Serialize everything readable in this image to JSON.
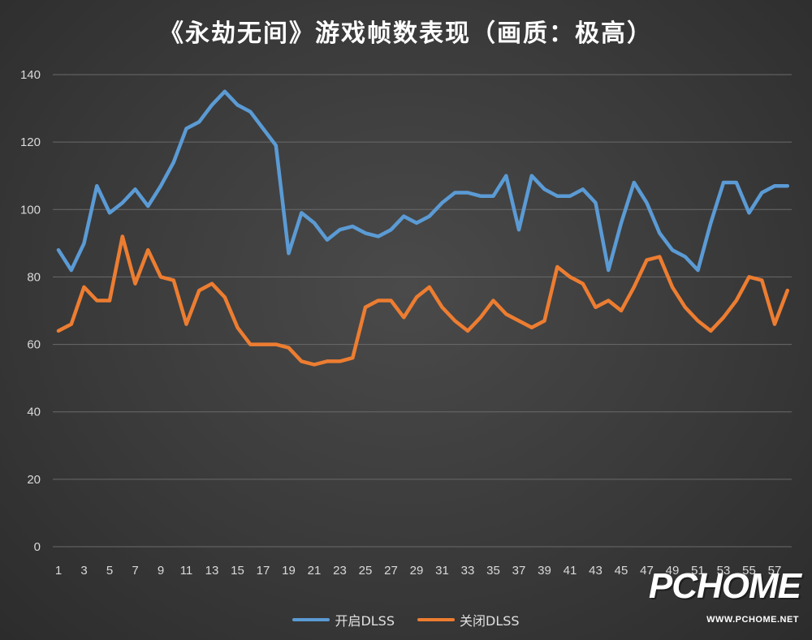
{
  "chart_data": {
    "type": "line",
    "title": "《永劫无间》游戏帧数表现（画质：极高）",
    "ylim": [
      0,
      140
    ],
    "yticks": [
      0,
      20,
      40,
      60,
      80,
      100,
      120,
      140
    ],
    "xticks": [
      "1",
      "3",
      "5",
      "7",
      "9",
      "11",
      "13",
      "15",
      "17",
      "19",
      "21",
      "23",
      "25",
      "27",
      "29",
      "31",
      "33",
      "35",
      "37",
      "39",
      "41",
      "43",
      "45",
      "47",
      "49",
      "51",
      "53",
      "55",
      "57"
    ],
    "x": [
      1,
      2,
      3,
      4,
      5,
      6,
      7,
      8,
      9,
      10,
      11,
      12,
      13,
      14,
      15,
      16,
      17,
      18,
      19,
      20,
      21,
      22,
      23,
      24,
      25,
      26,
      27,
      28,
      29,
      30,
      31,
      32,
      33,
      34,
      35,
      36,
      37,
      38,
      39,
      40,
      41,
      42,
      43,
      44,
      45,
      46,
      47,
      48,
      49,
      50,
      51,
      52,
      53,
      54,
      55,
      56,
      57,
      58
    ],
    "grid": true,
    "legend_position": "bottom",
    "series": [
      {
        "name": "开启DLSS",
        "color": "#5b9bd5",
        "values": [
          88,
          82,
          90,
          107,
          99,
          102,
          106,
          101,
          107,
          114,
          124,
          126,
          131,
          135,
          131,
          129,
          124,
          119,
          87,
          99,
          96,
          91,
          94,
          95,
          93,
          92,
          94,
          98,
          96,
          98,
          102,
          105,
          105,
          104,
          104,
          110,
          94,
          110,
          106,
          104,
          104,
          106,
          102,
          82,
          96,
          108,
          102,
          93,
          88,
          86,
          82,
          96,
          108,
          108,
          99,
          105,
          107,
          107
        ]
      },
      {
        "name": "关闭DLSS",
        "color": "#ed7d31",
        "values": [
          64,
          66,
          77,
          73,
          73,
          92,
          78,
          88,
          80,
          79,
          66,
          76,
          78,
          74,
          65,
          60,
          60,
          60,
          59,
          55,
          54,
          55,
          55,
          56,
          71,
          73,
          73,
          68,
          74,
          77,
          71,
          67,
          64,
          68,
          73,
          69,
          67,
          65,
          67,
          83,
          80,
          78,
          71,
          73,
          70,
          77,
          85,
          86,
          77,
          71,
          67,
          64,
          68,
          73,
          80,
          79,
          66,
          76
        ]
      }
    ]
  },
  "watermark": {
    "logo_text": "PCHOME",
    "url_text": "WWW.PCHOME.NET"
  }
}
